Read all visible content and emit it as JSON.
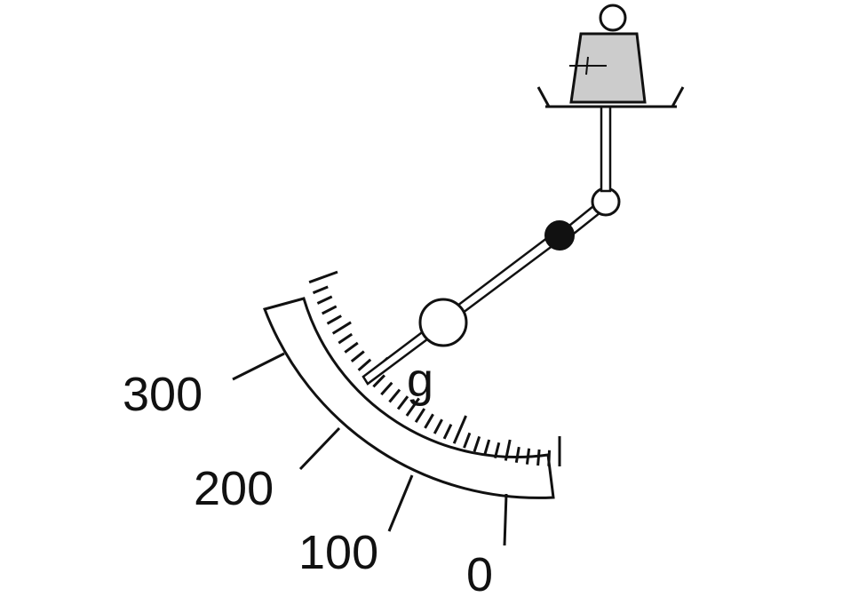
{
  "scale": {
    "unit": "g",
    "labels": [
      "300",
      "200",
      "100",
      "0"
    ]
  },
  "colors": {
    "line": "#111111",
    "weight_fill": "#cccccc",
    "pivot_fill": "#111111",
    "background": "#ffffff"
  }
}
